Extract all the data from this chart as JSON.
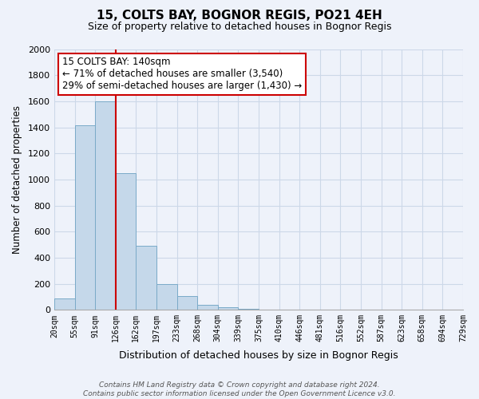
{
  "title": "15, COLTS BAY, BOGNOR REGIS, PO21 4EH",
  "subtitle": "Size of property relative to detached houses in Bognor Regis",
  "xlabel": "Distribution of detached houses by size in Bognor Regis",
  "ylabel": "Number of detached properties",
  "tick_labels": [
    "20sqm",
    "55sqm",
    "91sqm",
    "126sqm",
    "162sqm",
    "197sqm",
    "233sqm",
    "268sqm",
    "304sqm",
    "339sqm",
    "375sqm",
    "410sqm",
    "446sqm",
    "481sqm",
    "516sqm",
    "552sqm",
    "587sqm",
    "623sqm",
    "658sqm",
    "694sqm",
    "729sqm"
  ],
  "values": [
    85,
    1415,
    1600,
    1050,
    490,
    200,
    105,
    40,
    18,
    10,
    0,
    0,
    0,
    0,
    0,
    0,
    0,
    0,
    0,
    0
  ],
  "bar_color": "#c5d8ea",
  "bar_edgecolor": "#7aaac8",
  "vline_idx": 3,
  "vline_color": "#cc0000",
  "annotation_title": "15 COLTS BAY: 140sqm",
  "annotation_line1": "← 71% of detached houses are smaller (3,540)",
  "annotation_line2": "29% of semi-detached houses are larger (1,430) →",
  "annotation_box_facecolor": "#ffffff",
  "annotation_box_edgecolor": "#cc0000",
  "ylim": [
    0,
    2000
  ],
  "yticks": [
    0,
    200,
    400,
    600,
    800,
    1000,
    1200,
    1400,
    1600,
    1800,
    2000
  ],
  "footer_line1": "Contains HM Land Registry data © Crown copyright and database right 2024.",
  "footer_line2": "Contains public sector information licensed under the Open Government Licence v3.0.",
  "grid_color": "#ccd8e8",
  "background_color": "#eef2fa"
}
